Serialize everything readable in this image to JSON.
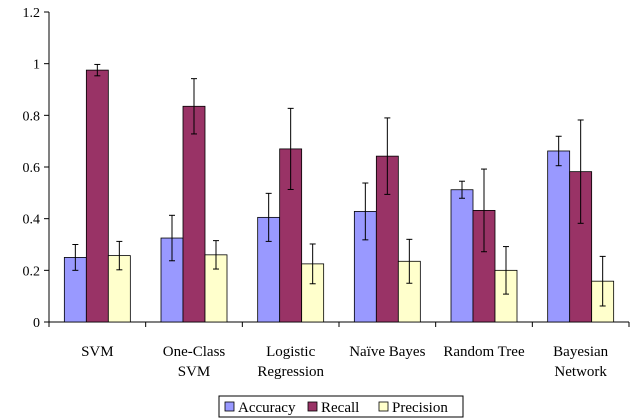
{
  "chart_data": {
    "type": "bar",
    "title": "",
    "xlabel": "",
    "ylabel": "",
    "ylim": [
      0,
      1.2
    ],
    "yticks": [
      0,
      0.2,
      0.4,
      0.6,
      0.8,
      1,
      1.2
    ],
    "ytick_labels": [
      "0",
      "0.2",
      "0.4",
      "0.6",
      "0.8",
      "1",
      "1.2"
    ],
    "grid": false,
    "legend_position": "bottom",
    "categories": [
      [
        "SVM"
      ],
      [
        "One-Class",
        "SVM"
      ],
      [
        "Logistic",
        "Regression"
      ],
      [
        "Naïve Bayes"
      ],
      [
        "Random Tree"
      ],
      [
        "Bayesian",
        "Network"
      ]
    ],
    "series": [
      {
        "name": "Accuracy",
        "color": "#9999ff",
        "values": [
          0.25,
          0.325,
          0.405,
          0.428,
          0.512,
          0.662
        ],
        "errors": [
          0.05,
          0.088,
          0.093,
          0.11,
          0.033,
          0.057
        ]
      },
      {
        "name": "Recall",
        "color": "#993366",
        "values": [
          0.975,
          0.835,
          0.67,
          0.642,
          0.432,
          0.582
        ],
        "errors": [
          0.022,
          0.107,
          0.157,
          0.148,
          0.16,
          0.2
        ]
      },
      {
        "name": "Precision",
        "color": "#ffffcc",
        "values": [
          0.257,
          0.26,
          0.225,
          0.235,
          0.2,
          0.158
        ],
        "errors": [
          0.055,
          0.055,
          0.077,
          0.085,
          0.092,
          0.096
        ]
      }
    ]
  }
}
